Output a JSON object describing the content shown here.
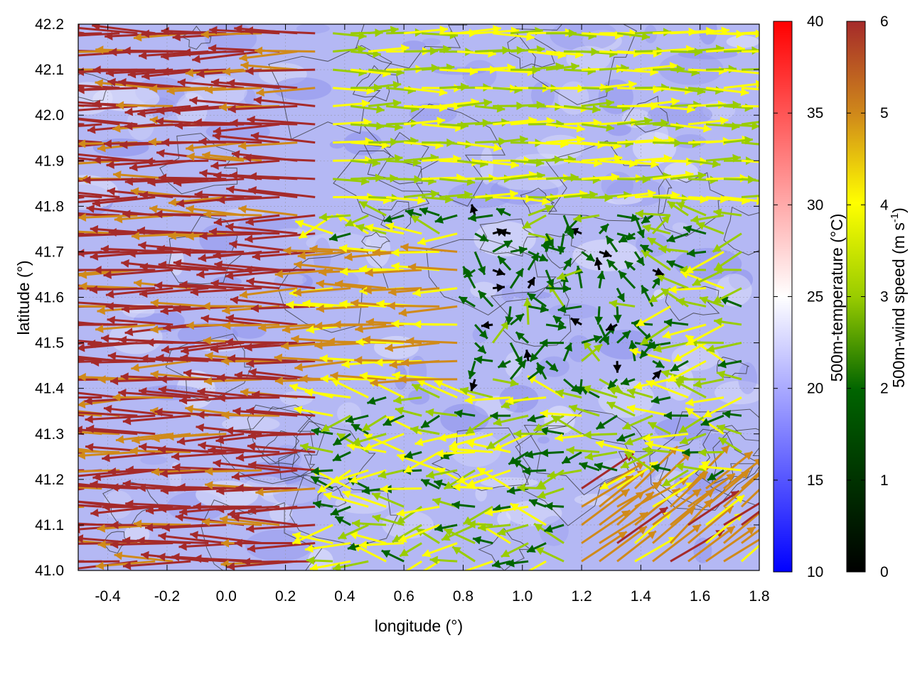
{
  "chart_data": {
    "type": "vector-field",
    "title": "",
    "xlabel": "longitude (°)",
    "ylabel": "latitude (°)",
    "xlim": [
      -0.5,
      1.8
    ],
    "ylim": [
      41.0,
      42.2
    ],
    "xticks": [
      "-0.4",
      "-0.2",
      "0.0",
      "0.2",
      "0.4",
      "0.6",
      "0.8",
      "1.0",
      "1.2",
      "1.4",
      "1.6",
      "1.8"
    ],
    "yticks": [
      "41.0",
      "41.1",
      "41.2",
      "41.3",
      "41.4",
      "41.5",
      "41.6",
      "41.7",
      "41.8",
      "41.9",
      "42.0",
      "42.1",
      "42.2"
    ],
    "grid": true,
    "background_field": {
      "name": "500m-temperature",
      "label": "500m-temperature (°C)",
      "range": [
        10,
        40
      ],
      "ticks": [
        "10",
        "15",
        "20",
        "25",
        "30",
        "35",
        "40"
      ],
      "colors": [
        "#0000ff",
        "#ffffff",
        "#ff0000"
      ],
      "typical_value": 20
    },
    "vector_field": {
      "name": "500m-wind speed",
      "label": "500m-wind speed (m s-1)",
      "range": [
        0,
        6
      ],
      "ticks": [
        "0",
        "1",
        "2",
        "3",
        "4",
        "5",
        "6"
      ],
      "colors": [
        "#000000",
        "#006400",
        "#99cc00",
        "#ffff00",
        "#d08a1a",
        "#a52a2a"
      ],
      "regions": [
        {
          "lon": [
            -0.5,
            0.3
          ],
          "lat": [
            41.0,
            42.2
          ],
          "direction": "west",
          "speed": 5.8
        },
        {
          "lon": [
            0.3,
            0.8
          ],
          "lat": [
            41.4,
            41.7
          ],
          "direction": "west",
          "speed": 4.5
        },
        {
          "lon": [
            0.8,
            1.5
          ],
          "lat": [
            41.4,
            41.8
          ],
          "direction": "mixed",
          "speed": 1.2
        },
        {
          "lon": [
            1.2,
            1.8
          ],
          "lat": [
            41.0,
            41.2
          ],
          "direction": "north-east",
          "speed": 4.8
        },
        {
          "lon": [
            0.3,
            1.8
          ],
          "lat": [
            41.8,
            42.2
          ],
          "direction": "east",
          "speed": 3.0
        }
      ]
    },
    "contours": {
      "color": "#333333",
      "description": "terrain"
    }
  },
  "colors": {
    "plot_border": "#000000",
    "grid": "#9999aa",
    "contour": "#333333"
  }
}
